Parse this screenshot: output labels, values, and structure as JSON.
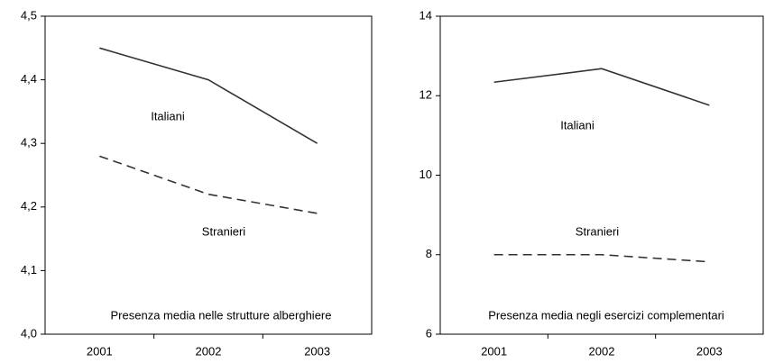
{
  "chart_data": [
    {
      "type": "line",
      "categories": [
        "2001",
        "2002",
        "2003"
      ],
      "series": [
        {
          "name": "Italiani",
          "color": "#333333",
          "style": "solid",
          "values": [
            4.45,
            4.4,
            4.3
          ]
        },
        {
          "name": "Stranieri",
          "color": "#333333",
          "style": "dashed",
          "values": [
            4.28,
            4.22,
            4.19
          ]
        }
      ],
      "ylim": [
        4.0,
        4.5
      ],
      "yticks": [
        {
          "value": 4.0,
          "label": "4,0"
        },
        {
          "value": 4.1,
          "label": "4,1"
        },
        {
          "value": 4.2,
          "label": "4,2"
        },
        {
          "value": 4.3,
          "label": "4,3"
        },
        {
          "value": 4.4,
          "label": "4,4"
        },
        {
          "value": 4.5,
          "label": "4,5"
        }
      ],
      "annotation": "Presenza media nelle strutture alberghiere"
    },
    {
      "type": "line",
      "categories": [
        "2001",
        "2002",
        "2003"
      ],
      "series": [
        {
          "name": "Italiani",
          "color": "#333333",
          "style": "solid",
          "values": [
            12.34,
            12.68,
            11.76
          ]
        },
        {
          "name": "Stranieri",
          "color": "#333333",
          "style": "dashed",
          "values": [
            8.0,
            8.0,
            7.82
          ]
        }
      ],
      "ylim": [
        6,
        14
      ],
      "yticks": [
        6,
        8,
        10,
        12,
        14
      ],
      "annotation": "Presenza media negli esercizi complementari"
    }
  ]
}
